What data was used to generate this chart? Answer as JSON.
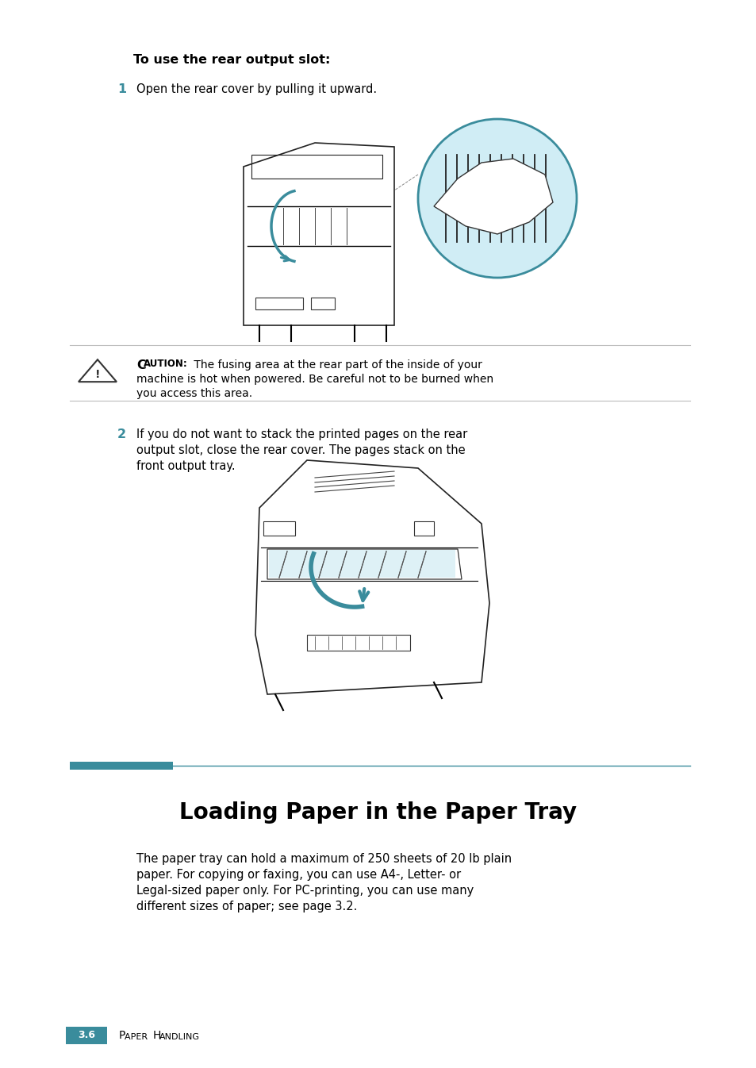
{
  "bg_color": "#ffffff",
  "teal_color": "#3a8c9c",
  "light_blue": "#a8d8e8",
  "text_color": "#000000",
  "gray_line": "#aaaaaa",
  "title": "To use the rear output slot:",
  "step1_num": "1",
  "step1_text": "Open the rear cover by pulling it upward.",
  "step2_num": "2",
  "step2_text_l1": "If you do not want to stack the printed pages on the rear",
  "step2_text_l2": "output slot, close the rear cover. The pages stack on the",
  "step2_text_l3": "front output tray.",
  "caution_label": "Caution:",
  "caution_label_display": "C",
  "caution_label_rest": "AUTION:",
  "caution_line1": " The fusing area at the rear part of the inside of your",
  "caution_line2": "machine is hot when powered. Be careful not to be burned when",
  "caution_line3": "you access this area.",
  "section_title": "Loading Paper in the Paper Tray",
  "para_line1": "The paper tray can hold a maximum of 250 sheets of 20 lb plain",
  "para_line2": "paper. For copying or faxing, you can use A4-, Letter- or",
  "para_line3": "Legal-sized paper only. For PC-printing, you can use many",
  "para_line4": "different sizes of paper; see page 3.2.",
  "footer_num": "3.6",
  "footer_label": "Paper Handling"
}
